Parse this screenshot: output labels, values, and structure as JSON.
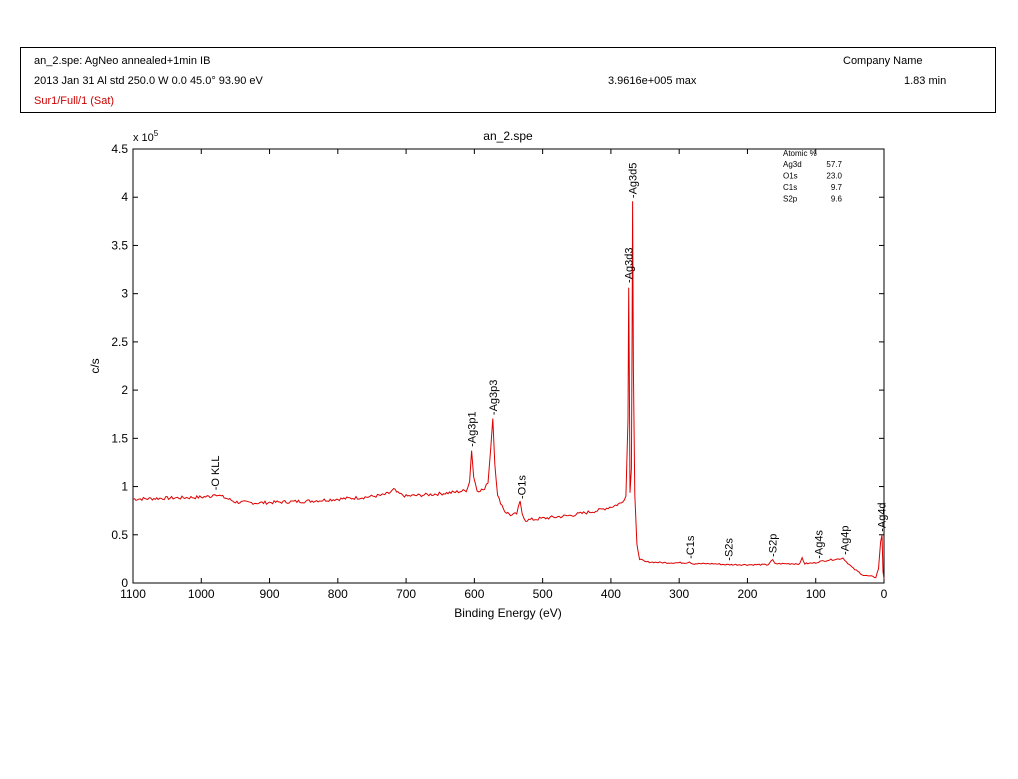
{
  "header": {
    "file_line": "an_2.spe: AgNeo annealed+1min IB",
    "company": "Company Name",
    "acq_line": "2013 Jan 31  Al std  250.0 W  0.0   45.0°  93.90 eV",
    "max_label": "3.9616e+005 max",
    "time_label": "1.83 min",
    "region_line": "Sur1/Full/1 (Sat)"
  },
  "colors": {
    "spectrum": "#dd0000",
    "axes": "#000000",
    "region_text": "#cc0000"
  },
  "chart_data": {
    "type": "line",
    "title": "an_2.spe",
    "xlabel": "Binding Energy (eV)",
    "ylabel": "c/s",
    "y_multiplier": "x 10",
    "y_multiplier_exp": "5",
    "xlim": [
      1100,
      0
    ],
    "ylim": [
      0,
      4.5
    ],
    "x_reversed": true,
    "xticks": [
      1100,
      1000,
      900,
      800,
      700,
      600,
      500,
      400,
      300,
      200,
      100,
      0
    ],
    "xtick_labels": [
      "1100",
      "1000",
      "900",
      "800",
      "700",
      "600",
      "500",
      "400",
      "300",
      "200",
      "100",
      "0"
    ],
    "yticks": [
      0,
      0.5,
      1,
      1.5,
      2,
      2.5,
      3,
      3.5,
      4,
      4.5
    ],
    "ytick_labels": [
      "0",
      "0.5",
      "1",
      "1.5",
      "2",
      "2.5",
      "3",
      "3.5",
      "4",
      "4.5"
    ],
    "series": [
      {
        "points": [
          [
            1100,
            0.87
          ],
          [
            1050,
            0.88
          ],
          [
            1000,
            0.89
          ],
          [
            985,
            0.9
          ],
          [
            980,
            0.93
          ],
          [
            975,
            0.91
          ],
          [
            960,
            0.87
          ],
          [
            950,
            0.84
          ],
          [
            920,
            0.83
          ],
          [
            880,
            0.84
          ],
          [
            840,
            0.85
          ],
          [
            800,
            0.87
          ],
          [
            760,
            0.89
          ],
          [
            735,
            0.91
          ],
          [
            725,
            0.93
          ],
          [
            718,
            0.97
          ],
          [
            712,
            0.93
          ],
          [
            700,
            0.9
          ],
          [
            660,
            0.92
          ],
          [
            630,
            0.94
          ],
          [
            612,
            0.96
          ],
          [
            607,
            1.05
          ],
          [
            604,
            1.38
          ],
          [
            601,
            1.1
          ],
          [
            596,
            0.96
          ],
          [
            585,
            0.97
          ],
          [
            580,
            1.05
          ],
          [
            576,
            1.4
          ],
          [
            573,
            1.71
          ],
          [
            570,
            1.25
          ],
          [
            566,
            0.9
          ],
          [
            555,
            0.74
          ],
          [
            545,
            0.7
          ],
          [
            538,
            0.72
          ],
          [
            533,
            0.84
          ],
          [
            530,
            0.72
          ],
          [
            525,
            0.65
          ],
          [
            500,
            0.67
          ],
          [
            460,
            0.7
          ],
          [
            420,
            0.75
          ],
          [
            395,
            0.8
          ],
          [
            385,
            0.83
          ],
          [
            378,
            0.9
          ],
          [
            375,
            1.7
          ],
          [
            374,
            3.08
          ],
          [
            373,
            2.2
          ],
          [
            372,
            0.95
          ],
          [
            370,
            1.2
          ],
          [
            369,
            2.6
          ],
          [
            368.2,
            3.96
          ],
          [
            367,
            2.2
          ],
          [
            365,
            0.9
          ],
          [
            362,
            0.4
          ],
          [
            358,
            0.25
          ],
          [
            350,
            0.22
          ],
          [
            320,
            0.21
          ],
          [
            290,
            0.21
          ],
          [
            285,
            0.22
          ],
          [
            280,
            0.2
          ],
          [
            250,
            0.2
          ],
          [
            230,
            0.19
          ],
          [
            200,
            0.19
          ],
          [
            170,
            0.19
          ],
          [
            163,
            0.24
          ],
          [
            160,
            0.2
          ],
          [
            140,
            0.2
          ],
          [
            123,
            0.2
          ],
          [
            120,
            0.26
          ],
          [
            116,
            0.2
          ],
          [
            100,
            0.21
          ],
          [
            96,
            0.22
          ],
          [
            80,
            0.24
          ],
          [
            65,
            0.25
          ],
          [
            60,
            0.26
          ],
          [
            55,
            0.22
          ],
          [
            45,
            0.15
          ],
          [
            30,
            0.08
          ],
          [
            12,
            0.06
          ],
          [
            8,
            0.15
          ],
          [
            5,
            0.42
          ],
          [
            3,
            0.5
          ],
          [
            1.5,
            0.12
          ],
          [
            0,
            0.04
          ]
        ]
      }
    ],
    "peak_labels": [
      {
        "label": "-O KLL",
        "x": 980,
        "y": 0.93
      },
      {
        "label": "-Ag3p1",
        "x": 604,
        "y": 1.38
      },
      {
        "label": "-Ag3p3",
        "x": 573,
        "y": 1.71
      },
      {
        "label": "-O1s",
        "x": 531,
        "y": 0.84
      },
      {
        "label": "-Ag3d3",
        "x": 374,
        "y": 3.08
      },
      {
        "label": "-Ag3d5",
        "x": 368.2,
        "y": 3.96
      },
      {
        "label": "-C1s",
        "x": 284,
        "y": 0.22
      },
      {
        "label": "-S2s",
        "x": 228,
        "y": 0.2
      },
      {
        "label": "-S2p",
        "x": 163,
        "y": 0.24
      },
      {
        "label": "-Ag4s",
        "x": 96,
        "y": 0.22
      },
      {
        "label": "-Ag4p",
        "x": 58,
        "y": 0.26
      },
      {
        "label": "-Ag4d",
        "x": 4,
        "y": 0.5
      }
    ],
    "atomic_table": {
      "header": "Atomic %",
      "rows": [
        {
          "element": "Ag3d",
          "value": "57.7"
        },
        {
          "element": "O1s",
          "value": "23.0"
        },
        {
          "element": "C1s",
          "value": "9.7"
        },
        {
          "element": "S2p",
          "value": "9.6"
        }
      ]
    }
  }
}
